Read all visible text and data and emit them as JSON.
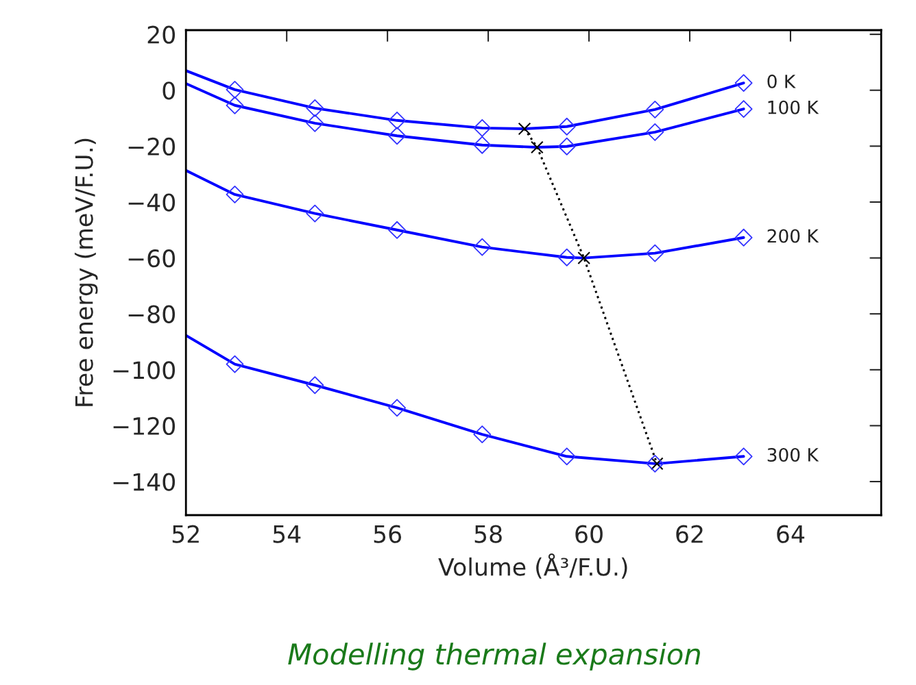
{
  "chart_data": {
    "type": "line",
    "title": "Modelling thermal expansion",
    "xlabel": "Volume (Å³/F.U.)",
    "ylabel": "Free energy (meV/F.U.)",
    "xlim": [
      52,
      65.8
    ],
    "ylim": [
      -152,
      21.5
    ],
    "xticks": [
      52,
      54,
      56,
      58,
      60,
      62,
      64
    ],
    "yticks": [
      -140,
      -120,
      -100,
      -80,
      -60,
      -40,
      -20,
      0,
      20
    ],
    "grid": false,
    "legend": false,
    "series": [
      {
        "name": "0 K",
        "color": "#0000ff",
        "marker": "none",
        "line_style": "solid",
        "x": [
          52,
          52.97,
          54.56,
          56.19,
          57.88,
          58.72,
          59.56,
          61.31,
          63.07
        ],
        "values": [
          7.0,
          0.2,
          -6.4,
          -10.8,
          -13.5,
          -13.8,
          -13.0,
          -6.9,
          2.6
        ]
      },
      {
        "name": "100 K",
        "color": "#0000ff",
        "marker": "none",
        "line_style": "solid",
        "x": [
          52,
          52.97,
          54.56,
          56.19,
          57.88,
          58.97,
          59.56,
          61.31,
          63.07
        ],
        "values": [
          2.4,
          -5.4,
          -11.8,
          -16.3,
          -19.6,
          -20.4,
          -20.1,
          -15.0,
          -6.7
        ]
      },
      {
        "name": "200 K",
        "color": "#0000ff",
        "marker": "none",
        "line_style": "solid",
        "x": [
          52,
          52.97,
          54.56,
          56.19,
          57.88,
          59.56,
          59.9,
          61.31,
          63.07
        ],
        "values": [
          -28.7,
          -37.3,
          -44.1,
          -50.0,
          -56.1,
          -59.8,
          -60.0,
          -58.3,
          -52.7
        ]
      },
      {
        "name": "300 K",
        "color": "#0000ff",
        "marker": "none",
        "line_style": "solid",
        "x": [
          52,
          52.97,
          54.56,
          56.19,
          57.88,
          59.56,
          61.31,
          61.35,
          63.07
        ],
        "values": [
          -87.7,
          -98.0,
          -105.5,
          -113.6,
          -123.1,
          -131.0,
          -133.6,
          -133.6,
          -131.0
        ]
      },
      {
        "type": "scatter",
        "color": "#3333ff",
        "marker": "diamond",
        "x": [
          52.97,
          54.56,
          56.19,
          57.88,
          59.56,
          61.31,
          63.07
        ],
        "values": [
          0.2,
          -6.4,
          -10.8,
          -13.5,
          -13.0,
          -6.9,
          2.6
        ]
      },
      {
        "type": "scatter",
        "color": "#3333ff",
        "marker": "diamond",
        "x": [
          52.97,
          54.56,
          56.19,
          57.88,
          59.56,
          61.31,
          63.07
        ],
        "values": [
          -5.4,
          -11.8,
          -16.3,
          -19.6,
          -20.1,
          -15.0,
          -6.7
        ]
      },
      {
        "type": "scatter",
        "color": "#3333ff",
        "marker": "diamond",
        "x": [
          52.97,
          54.56,
          56.19,
          57.88,
          59.56,
          61.31,
          63.07
        ],
        "values": [
          -37.3,
          -44.1,
          -50.0,
          -56.1,
          -59.8,
          -58.3,
          -52.7
        ]
      },
      {
        "type": "scatter",
        "color": "#3333ff",
        "marker": "diamond",
        "x": [
          52.97,
          54.56,
          56.19,
          57.88,
          59.56,
          61.31,
          63.07
        ],
        "values": [
          -98.0,
          -105.5,
          -113.6,
          -123.1,
          -131.0,
          -133.6,
          -131.0
        ]
      },
      {
        "color": "#000000",
        "marker": "cross",
        "line_style": "dotted",
        "x": [
          58.72,
          58.97,
          59.9,
          61.35
        ],
        "values": [
          -13.8,
          -20.4,
          -60.0,
          -133.6
        ]
      }
    ]
  }
}
